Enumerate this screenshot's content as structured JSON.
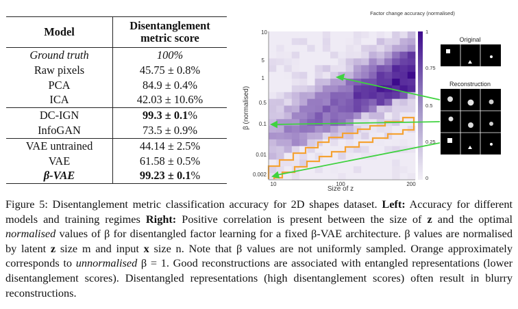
{
  "table": {
    "headers": {
      "model": "Model",
      "score": "Disentanglement metric score"
    },
    "rows": [
      {
        "model": "Ground truth",
        "score_main": "100%",
        "score_pm": "",
        "score_tail": ""
      },
      {
        "model": "Raw pixels",
        "score_main": "45.75",
        "score_pm": " ± 0.8",
        "score_tail": "%"
      },
      {
        "model": "PCA",
        "score_main": "84.9",
        "score_pm": " ± 0.4",
        "score_tail": "%"
      },
      {
        "model": "ICA",
        "score_main": "42.03",
        "score_pm": " ± 10.6",
        "score_tail": "%"
      },
      {
        "model": "DC-IGN",
        "score_main": "99.3",
        "score_pm": " ± 0.1",
        "score_tail": "%"
      },
      {
        "model": "InfoGAN",
        "score_main": "73.5",
        "score_pm": " ± 0.9",
        "score_tail": "%"
      },
      {
        "model": "VAE untrained",
        "score_main": "44.14",
        "score_pm": " ± 2.5",
        "score_tail": "%"
      },
      {
        "model": "VAE",
        "score_main": "61.58",
        "score_pm": " ± 0.5",
        "score_tail": "%"
      },
      {
        "model": "β-VAE",
        "score_main": "99.23",
        "score_pm": " ± 0.1",
        "score_tail": "%"
      }
    ]
  },
  "chart_data": {
    "type": "heatmap",
    "title": "Factor change accuracy (normalised)",
    "xlabel": "Size of z",
    "ylabel": "β (normalised)",
    "x_ticks": [
      "10",
      "100",
      "200"
    ],
    "y_ticks": [
      "10",
      "5",
      "1",
      "0.5",
      "0.1",
      "0.01",
      "0.002"
    ],
    "colorbar_ticks": [
      "1",
      "0.75",
      "0.5",
      "0.25",
      "0"
    ],
    "grid_cols": 19,
    "grid_rows": 22,
    "panels": {
      "original": "Original",
      "reconstruction": "Reconstruction"
    }
  },
  "colors": {
    "heat_low": "#f3f0f7",
    "heat_high": "#3d0a8c",
    "orange": "#f5a233",
    "arrow": "#3fd23f"
  },
  "caption": {
    "fig": "Figure 5: Disentanglement metric classification accuracy for 2D shapes dataset.",
    "left_label": "Left:",
    "left_text": "Accuracy for different models and training regimes",
    "right_label": "Right:",
    "p1": "Positive correlation is present between the size of",
    "z1": "z",
    "p2": "and the optimal",
    "normalised": "normalised",
    "p3": "values of β for disentangled factor learning for a fixed β-VAE architecture. β values are normalised by latent",
    "z2": "z",
    "p4": "size m and input",
    "x": "x",
    "p5": "size n. Note that β values are not uniformly sampled. Orange approximately corresponds to",
    "unnormalised": "unnormalised",
    "p6": "β = 1. Good reconstructions are associated with entangled representations (lower disentanglement scores). Disentangled representations (high disentanglement scores) often result in blurry reconstructions."
  }
}
